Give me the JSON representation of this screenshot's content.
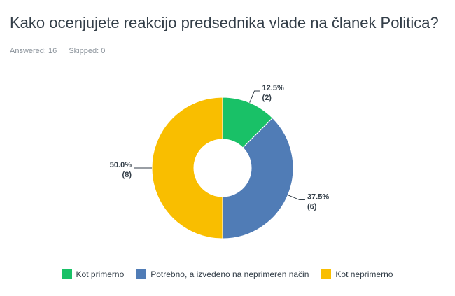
{
  "header": {
    "title": "Kako ocenjujete reakcijo predsednika vlade na članek Politica?",
    "answered_label": "Answered: 16",
    "skipped_label": "Skipped: 0"
  },
  "chart_data": {
    "type": "pie",
    "subtype": "donut",
    "categories": [
      "Kot primerno",
      "Potrebno, a izvedeno na neprimeren način",
      "Kot neprimerno"
    ],
    "values": [
      12.5,
      37.5,
      50.0
    ],
    "counts": [
      2,
      6,
      8
    ],
    "percent_labels": [
      "12.5%",
      "37.5%",
      "50.0%"
    ],
    "count_labels": [
      "(2)",
      "(6)",
      "(8)"
    ],
    "colors": [
      "#19c167",
      "#507cb6",
      "#f9be00"
    ],
    "legend_position": "bottom"
  }
}
